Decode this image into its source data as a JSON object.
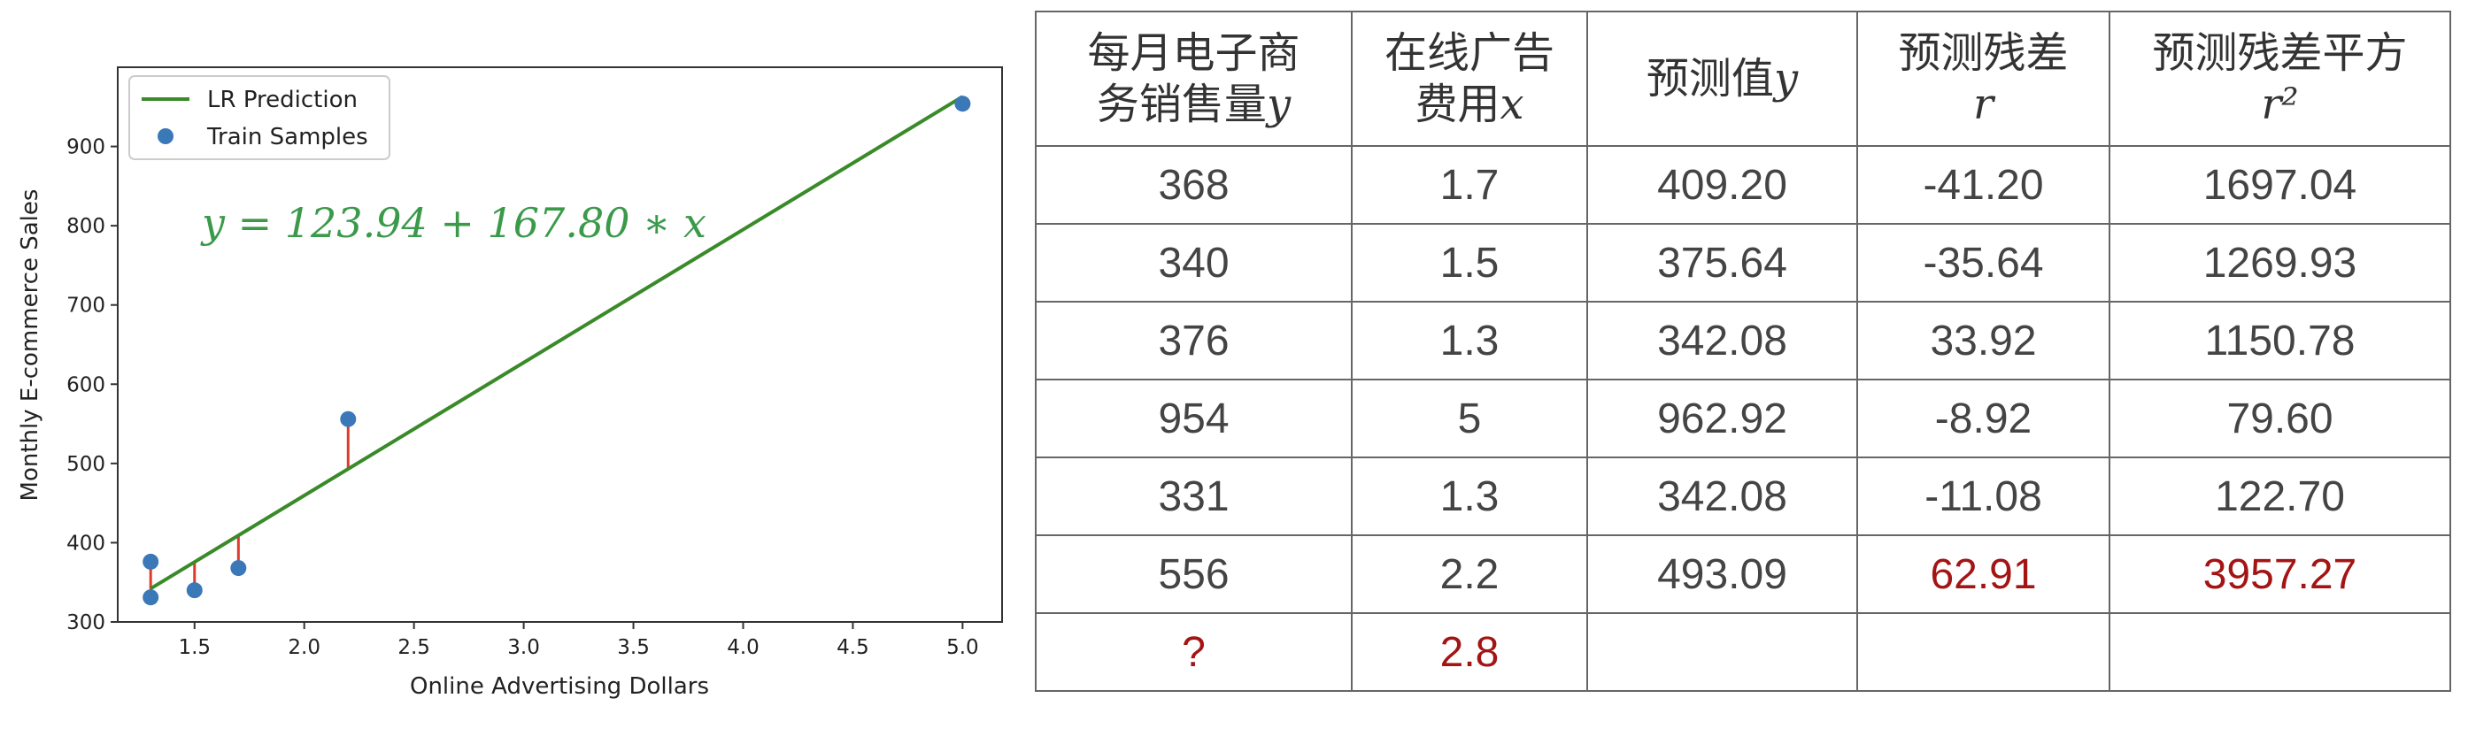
{
  "chart_data": {
    "type": "scatter",
    "xlabel": "Online Advertising Dollars",
    "ylabel": "Monthly E-commerce Sales",
    "xlim": [
      1.15,
      5.18
    ],
    "ylim": [
      300,
      1000
    ],
    "xticks": [
      "1.5",
      "2.0",
      "2.5",
      "3.0",
      "3.5",
      "4.0",
      "4.5",
      "5.0"
    ],
    "yticks": [
      "300",
      "400",
      "500",
      "600",
      "700",
      "800",
      "900"
    ],
    "legend": {
      "placement": "top-left",
      "entries": [
        "LR Prediction",
        "Train Samples"
      ]
    },
    "equation": "y = 123.94 + 167.80  ∗ x",
    "line": {
      "intercept": 123.94,
      "slope": 167.8,
      "x_range": [
        1.3,
        5.0
      ],
      "color": "#3a8a2a"
    },
    "points": [
      {
        "x": 1.7,
        "y": 368
      },
      {
        "x": 1.5,
        "y": 340
      },
      {
        "x": 1.3,
        "y": 376
      },
      {
        "x": 5.0,
        "y": 954
      },
      {
        "x": 1.3,
        "y": 331
      },
      {
        "x": 2.2,
        "y": 556
      }
    ],
    "point_color": "#3b78b8",
    "residual_color": "#e03a2a"
  },
  "table": {
    "headers": [
      {
        "text": "每月电子商",
        "text2": "务销售量",
        "math": "y"
      },
      {
        "text": "在线广告",
        "text2": "费用",
        "math": "x"
      },
      {
        "text": "预测值",
        "text2": "",
        "math": "y"
      },
      {
        "text": "预测残差",
        "text2": "",
        "math": "r"
      },
      {
        "text": "预测残差平方",
        "text2": "",
        "math": "r²"
      }
    ],
    "rows": [
      [
        "368",
        "1.7",
        "409.20",
        "-41.20",
        "1697.04"
      ],
      [
        "340",
        "1.5",
        "375.64",
        "-35.64",
        "1269.93"
      ],
      [
        "376",
        "1.3",
        "342.08",
        "33.92",
        "1150.78"
      ],
      [
        "954",
        "5",
        "962.92",
        "-8.92",
        "79.60"
      ],
      [
        "331",
        "1.3",
        "342.08",
        "-11.08",
        "122.70"
      ],
      [
        "556",
        "2.2",
        "493.09",
        "62.91",
        "3957.27"
      ],
      [
        "?",
        "2.8",
        "",
        "",
        ""
      ]
    ],
    "highlight_color": "#a31515"
  }
}
